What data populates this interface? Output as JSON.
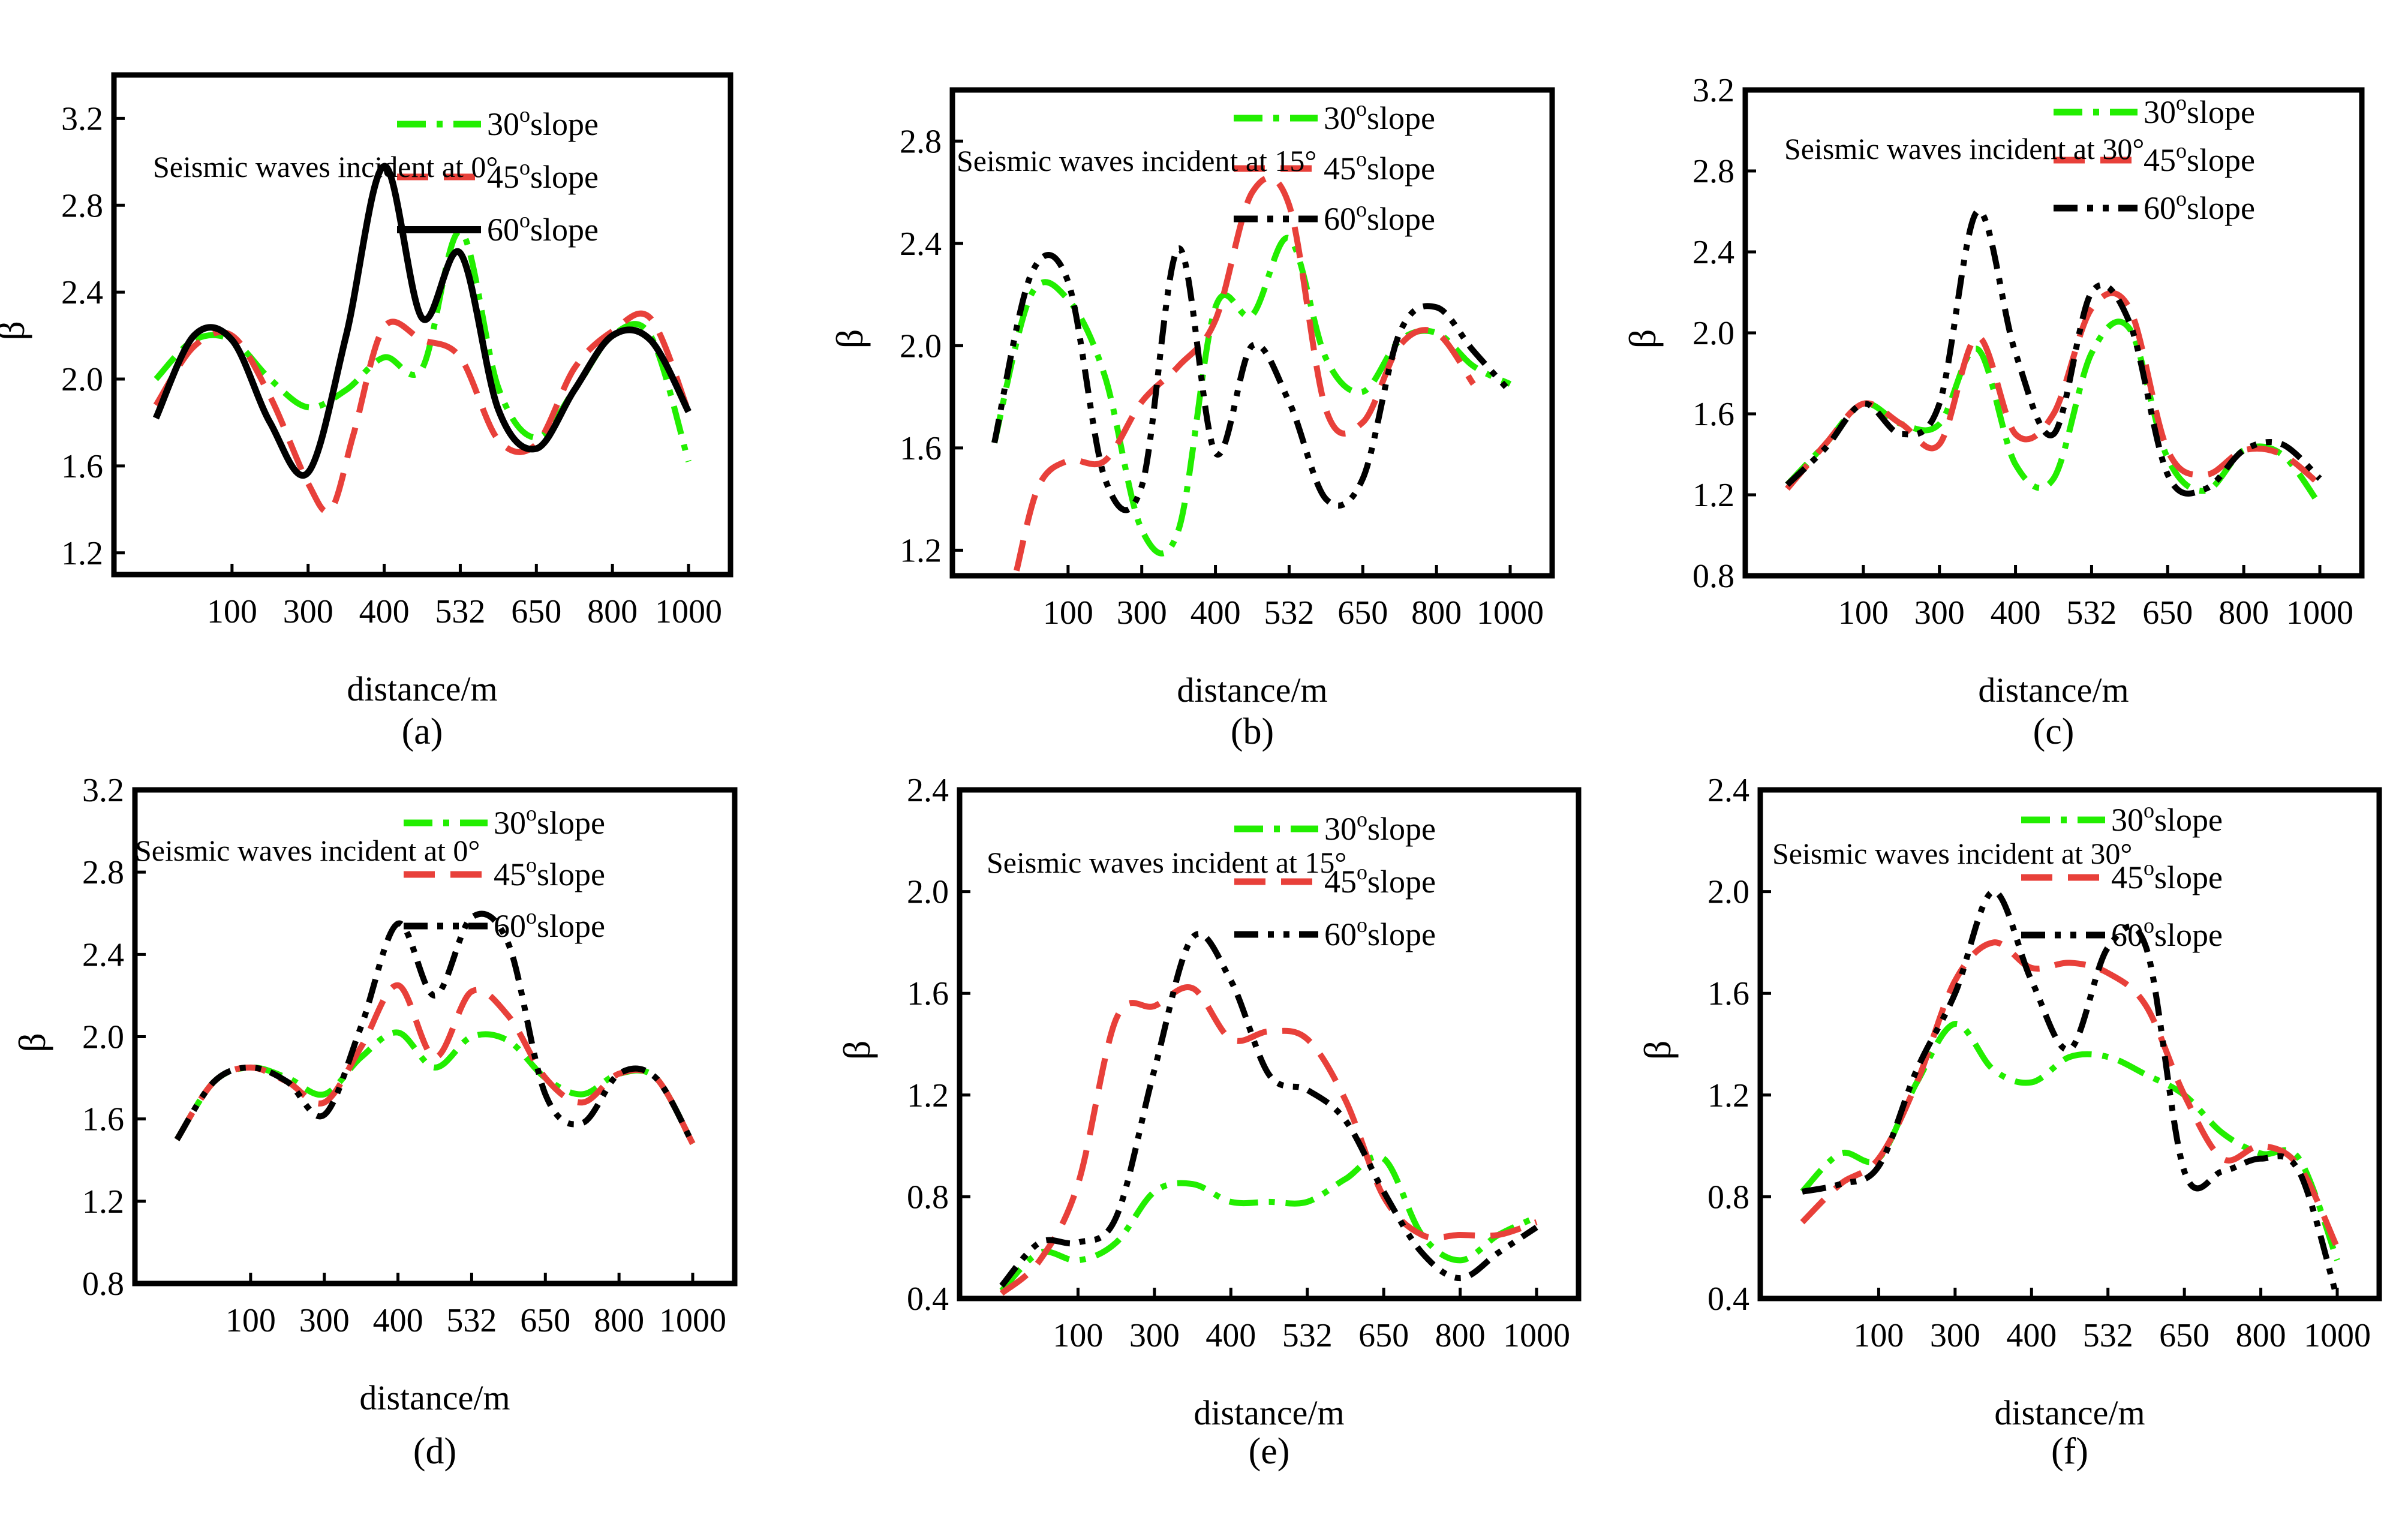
{
  "figure": {
    "colors": {
      "green": "#22ee00",
      "red": "#e8403a",
      "black": "#000000"
    },
    "legend_suffix": "slope",
    "legend_degree_mark": "o"
  },
  "chart_data": [
    {
      "type": "line",
      "panel_label": "(a)",
      "annotation": "Seismic waves incident at 0°",
      "xlabel": "distance/m",
      "ylabel": "β",
      "x_tick_labels": [
        "100",
        "300",
        "400",
        "532",
        "650",
        "800",
        "1000"
      ],
      "y_ticks": [
        "1.2",
        "1.6",
        "2.0",
        "2.4",
        "2.8",
        "3.2"
      ],
      "ylim": [
        1.1,
        3.4
      ],
      "series": [
        {
          "name": "30",
          "style": "dash-dot",
          "color": "green",
          "x": [
            0,
            0.5,
            1,
            1.5,
            2,
            2.5,
            3,
            3.5,
            4,
            4.5,
            5,
            5.5,
            6,
            6.5,
            7
          ],
          "values": [
            2.0,
            2.18,
            2.18,
            2.0,
            1.87,
            1.95,
            2.1,
            2.05,
            2.68,
            1.96,
            1.73,
            1.95,
            2.2,
            2.2,
            1.62
          ]
        },
        {
          "name": "45",
          "style": "dash",
          "color": "red",
          "x": [
            0,
            0.5,
            1,
            1.5,
            2,
            2.3,
            2.6,
            3,
            3.5,
            4,
            4.5,
            5,
            5.5,
            6,
            6.5,
            7
          ],
          "values": [
            1.88,
            2.15,
            2.2,
            1.92,
            1.52,
            1.4,
            1.75,
            2.24,
            2.18,
            2.1,
            1.72,
            1.7,
            2.05,
            2.22,
            2.28,
            1.85
          ]
        },
        {
          "name": "60",
          "style": "solid",
          "color": "black",
          "x": [
            0,
            0.5,
            1,
            1.5,
            2,
            2.5,
            3,
            3.5,
            4,
            4.5,
            5,
            5.5,
            6,
            6.5,
            7
          ],
          "values": [
            1.82,
            2.2,
            2.18,
            1.8,
            1.57,
            2.2,
            2.98,
            2.28,
            2.58,
            1.86,
            1.68,
            1.95,
            2.2,
            2.18,
            1.85
          ]
        }
      ]
    },
    {
      "type": "line",
      "panel_label": "(b)",
      "annotation": "Seismic waves incident at 15°",
      "xlabel": "distance/m",
      "ylabel": "β",
      "x_tick_labels": [
        "100",
        "300",
        "400",
        "532",
        "650",
        "800",
        "1000"
      ],
      "y_ticks": [
        "1.2",
        "1.6",
        "2.0",
        "2.4",
        "2.8"
      ],
      "ylim": [
        1.1,
        3.0
      ],
      "series": [
        {
          "name": "30",
          "style": "dash-dot",
          "color": "green",
          "x": [
            0,
            0.5,
            1,
            1.5,
            2,
            2.5,
            3,
            3.5,
            4,
            4.5,
            5,
            5.5,
            6,
            6.5,
            7
          ],
          "values": [
            1.62,
            2.2,
            2.18,
            1.88,
            1.28,
            1.28,
            2.15,
            2.12,
            2.42,
            1.95,
            1.82,
            2.02,
            2.05,
            1.92,
            1.85
          ]
        },
        {
          "name": "45",
          "style": "dash",
          "color": "red",
          "x": [
            0.3,
            0.6,
            1,
            1.5,
            2,
            2.5,
            3,
            3.5,
            4,
            4.5,
            5,
            5.5,
            6,
            6.5
          ],
          "values": [
            1.12,
            1.45,
            1.55,
            1.55,
            1.78,
            1.92,
            2.1,
            2.6,
            2.55,
            1.75,
            1.7,
            2.0,
            2.05,
            1.85
          ]
        },
        {
          "name": "60",
          "style": "dash-dot-dot",
          "color": "black",
          "x": [
            0,
            0.5,
            1,
            1.5,
            2,
            2.5,
            3,
            3.5,
            4,
            4.5,
            5,
            5.5,
            6,
            6.5,
            7
          ],
          "values": [
            1.62,
            2.28,
            2.25,
            1.48,
            1.45,
            2.38,
            1.58,
            2.0,
            1.78,
            1.4,
            1.48,
            2.05,
            2.15,
            1.98,
            1.82
          ]
        }
      ]
    },
    {
      "type": "line",
      "panel_label": "(c)",
      "annotation": "Seismic waves incident at 30°",
      "xlabel": "distance/m",
      "ylabel": "β",
      "x_tick_labels": [
        "100",
        "300",
        "400",
        "532",
        "650",
        "800",
        "1000"
      ],
      "y_ticks": [
        "0.8",
        "1.2",
        "1.6",
        "2.0",
        "2.4",
        "2.8",
        "3.2"
      ],
      "ylim": [
        0.8,
        3.2
      ],
      "series": [
        {
          "name": "30",
          "style": "dash-dot",
          "color": "green",
          "x": [
            0,
            0.5,
            1,
            1.5,
            2,
            2.5,
            3,
            3.5,
            4,
            4.5,
            5,
            5.5,
            6,
            6.5,
            7
          ],
          "values": [
            1.25,
            1.45,
            1.65,
            1.55,
            1.55,
            1.92,
            1.35,
            1.28,
            1.9,
            2.02,
            1.38,
            1.22,
            1.42,
            1.4,
            1.15
          ]
        },
        {
          "name": "45",
          "style": "dash",
          "color": "red",
          "x": [
            0,
            0.5,
            1,
            1.5,
            2,
            2.5,
            3,
            3.5,
            4,
            4.5,
            5,
            5.5,
            6,
            6.5,
            7
          ],
          "values": [
            1.23,
            1.45,
            1.65,
            1.55,
            1.45,
            1.98,
            1.5,
            1.6,
            2.12,
            2.12,
            1.42,
            1.3,
            1.42,
            1.4,
            1.25
          ]
        },
        {
          "name": "60",
          "style": "dash-dot-dot",
          "color": "black",
          "x": [
            0,
            0.5,
            1,
            1.5,
            2,
            2.5,
            3,
            3.5,
            4,
            4.5,
            5,
            5.5,
            6,
            6.5,
            7
          ],
          "values": [
            1.25,
            1.43,
            1.65,
            1.5,
            1.65,
            2.6,
            1.9,
            1.5,
            2.2,
            2.05,
            1.3,
            1.23,
            1.42,
            1.45,
            1.28
          ]
        }
      ]
    },
    {
      "type": "line",
      "panel_label": "(d)",
      "annotation": "Seismic waves incident at 0°",
      "xlabel": "distance/m",
      "ylabel": "β",
      "x_tick_labels": [
        "100",
        "300",
        "400",
        "532",
        "650",
        "800",
        "1000"
      ],
      "y_ticks": [
        "0.8",
        "1.2",
        "1.6",
        "2.0",
        "2.4",
        "2.8",
        "3.2"
      ],
      "ylim": [
        0.8,
        3.2
      ],
      "series": [
        {
          "name": "30",
          "style": "dash-dot",
          "color": "green",
          "x": [
            0,
            0.5,
            1,
            1.5,
            2,
            2.5,
            3,
            3.5,
            4,
            4.5,
            5,
            5.5,
            6,
            6.5,
            7
          ],
          "values": [
            1.5,
            1.78,
            1.85,
            1.8,
            1.72,
            1.9,
            2.02,
            1.85,
            2.0,
            1.98,
            1.8,
            1.72,
            1.82,
            1.8,
            1.48
          ]
        },
        {
          "name": "45",
          "style": "dash",
          "color": "red",
          "x": [
            0,
            0.5,
            1,
            1.5,
            2,
            2.5,
            3,
            3.5,
            4,
            4.5,
            5,
            5.5,
            6,
            6.5,
            7
          ],
          "values": [
            1.5,
            1.78,
            1.85,
            1.78,
            1.68,
            1.95,
            2.25,
            1.9,
            2.22,
            2.1,
            1.8,
            1.68,
            1.82,
            1.8,
            1.48
          ]
        },
        {
          "name": "60",
          "style": "dash-dot-dot",
          "color": "black",
          "x": [
            0,
            0.5,
            1,
            1.5,
            2,
            2.5,
            3,
            3.5,
            4,
            4.5,
            5,
            5.5,
            6,
            6.5,
            7
          ],
          "values": [
            1.5,
            1.78,
            1.85,
            1.78,
            1.62,
            2.05,
            2.55,
            2.2,
            2.58,
            2.45,
            1.72,
            1.58,
            1.82,
            1.8,
            1.48
          ]
        }
      ]
    },
    {
      "type": "line",
      "panel_label": "(e)",
      "annotation": "Seismic waves incident at 15°",
      "xlabel": "distance/m",
      "ylabel": "β",
      "x_tick_labels": [
        "100",
        "300",
        "400",
        "532",
        "650",
        "800",
        "1000"
      ],
      "y_ticks": [
        "0.4",
        "0.8",
        "1.2",
        "1.6",
        "2.0",
        "2.4"
      ],
      "ylim": [
        0.4,
        2.4
      ],
      "series": [
        {
          "name": "30",
          "style": "dash-dot",
          "color": "green",
          "x": [
            0,
            0.5,
            1,
            1.5,
            2,
            2.5,
            3,
            3.5,
            4,
            4.5,
            5,
            5.5,
            6,
            6.5,
            7
          ],
          "values": [
            0.43,
            0.58,
            0.55,
            0.62,
            0.82,
            0.85,
            0.78,
            0.78,
            0.78,
            0.87,
            0.95,
            0.65,
            0.55,
            0.65,
            0.72
          ]
        },
        {
          "name": "45",
          "style": "dash",
          "color": "red",
          "x": [
            0,
            0.5,
            1,
            1.5,
            2,
            2.5,
            3,
            3.5,
            4,
            4.5,
            5,
            5.5,
            6,
            6.5,
            7
          ],
          "values": [
            0.42,
            0.55,
            0.85,
            1.5,
            1.55,
            1.62,
            1.42,
            1.45,
            1.42,
            1.18,
            0.8,
            0.65,
            0.65,
            0.65,
            0.7
          ]
        },
        {
          "name": "60",
          "style": "dash-dot-dot",
          "color": "black",
          "x": [
            0,
            0.5,
            1,
            1.5,
            2,
            2.5,
            3,
            3.5,
            4,
            4.5,
            5,
            5.5,
            6,
            6.5,
            7
          ],
          "values": [
            0.45,
            0.62,
            0.62,
            0.72,
            1.3,
            1.82,
            1.65,
            1.28,
            1.22,
            1.1,
            0.82,
            0.58,
            0.48,
            0.58,
            0.68
          ]
        }
      ]
    },
    {
      "type": "line",
      "panel_label": "(f)",
      "annotation": "Seismic waves incident at 30°",
      "xlabel": "distance/m",
      "ylabel": "β",
      "x_tick_labels": [
        "100",
        "300",
        "400",
        "532",
        "650",
        "800",
        "1000"
      ],
      "y_ticks": [
        "0.4",
        "0.8",
        "1.2",
        "1.6",
        "2.0",
        "2.4"
      ],
      "ylim": [
        0.4,
        2.4
      ],
      "series": [
        {
          "name": "30",
          "style": "dash-dot",
          "color": "green",
          "x": [
            0,
            0.5,
            1,
            1.5,
            2,
            2.5,
            3,
            3.5,
            4,
            4.5,
            5,
            5.5,
            6,
            6.5,
            7
          ],
          "values": [
            0.82,
            0.97,
            0.95,
            1.25,
            1.48,
            1.3,
            1.25,
            1.35,
            1.35,
            1.28,
            1.2,
            1.05,
            0.97,
            0.95,
            0.55
          ]
        },
        {
          "name": "45",
          "style": "dash",
          "color": "red",
          "x": [
            0,
            0.5,
            1,
            1.5,
            2,
            2.5,
            3,
            3.5,
            4,
            4.5,
            5,
            5.5,
            6,
            6.5,
            7
          ],
          "values": [
            0.7,
            0.85,
            0.95,
            1.25,
            1.65,
            1.8,
            1.7,
            1.72,
            1.68,
            1.55,
            1.2,
            0.95,
            1.0,
            0.92,
            0.6
          ]
        },
        {
          "name": "60",
          "style": "dash-dot-dot",
          "color": "black",
          "x": [
            0,
            0.5,
            1,
            1.5,
            2,
            2.5,
            3,
            3.5,
            4,
            4.5,
            5,
            5.5,
            6,
            6.5,
            7
          ],
          "values": [
            0.82,
            0.85,
            0.92,
            1.3,
            1.6,
            2.0,
            1.65,
            1.38,
            1.78,
            1.78,
            0.9,
            0.9,
            0.95,
            0.9,
            0.4
          ]
        }
      ]
    }
  ]
}
